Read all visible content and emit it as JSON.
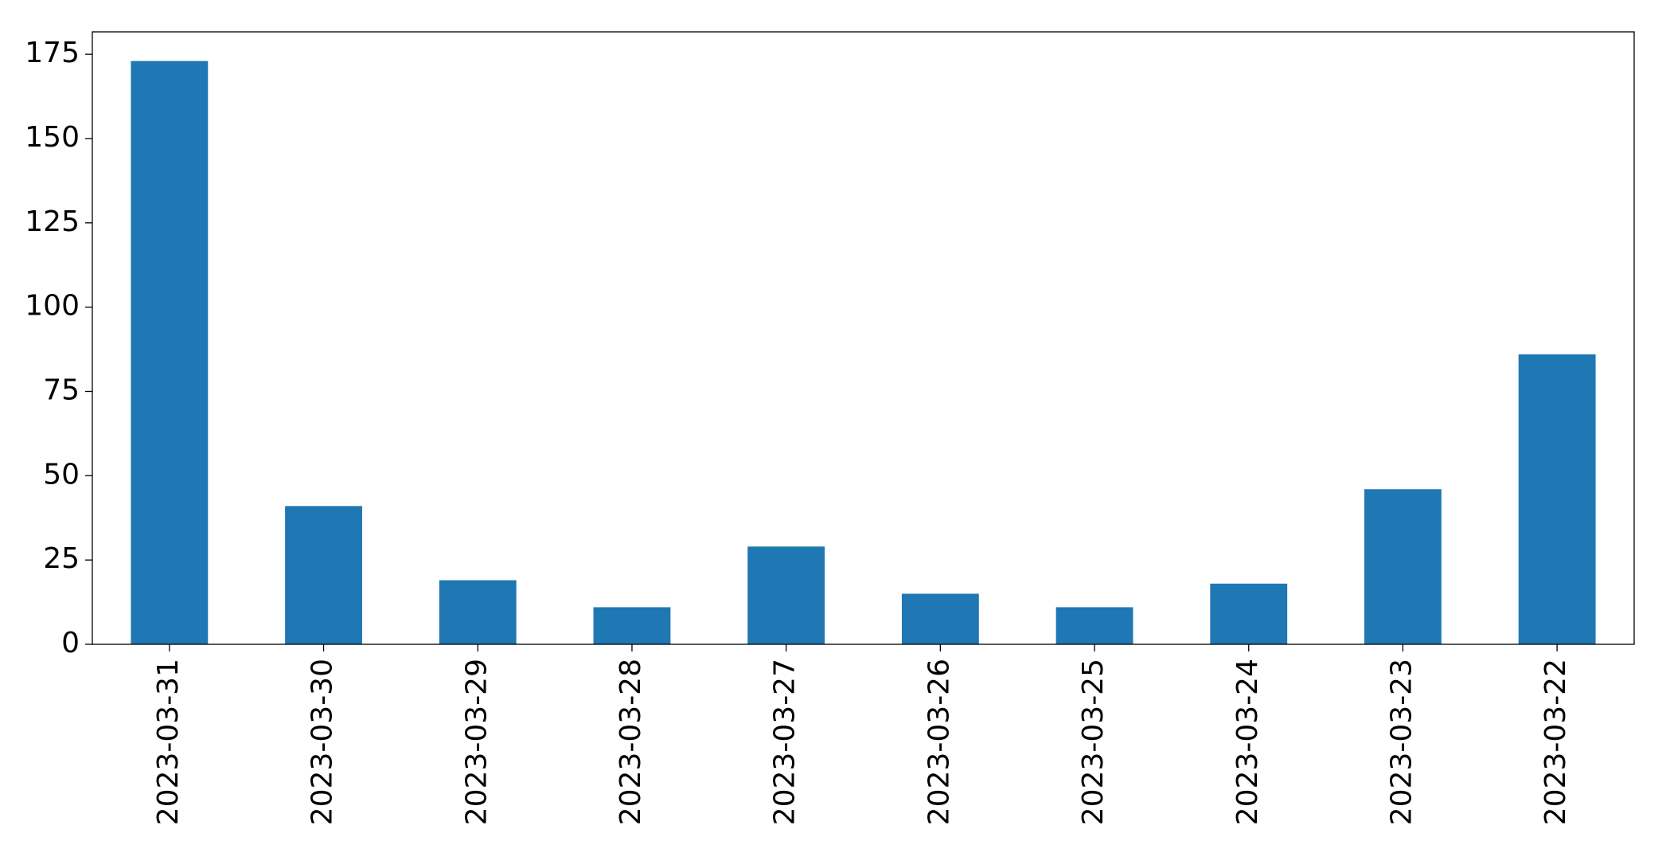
{
  "chart_data": {
    "type": "bar",
    "categories": [
      "2023-03-31",
      "2023-03-30",
      "2023-03-29",
      "2023-03-28",
      "2023-03-27",
      "2023-03-26",
      "2023-03-25",
      "2023-03-24",
      "2023-03-23",
      "2023-03-22"
    ],
    "values": [
      173,
      41,
      19,
      11,
      29,
      15,
      11,
      18,
      46,
      86
    ],
    "color": "#1f77b4",
    "ylim": [
      0,
      181.65
    ],
    "yticks": [
      0,
      25,
      50,
      75,
      100,
      125,
      150,
      175
    ],
    "grid": false
  }
}
